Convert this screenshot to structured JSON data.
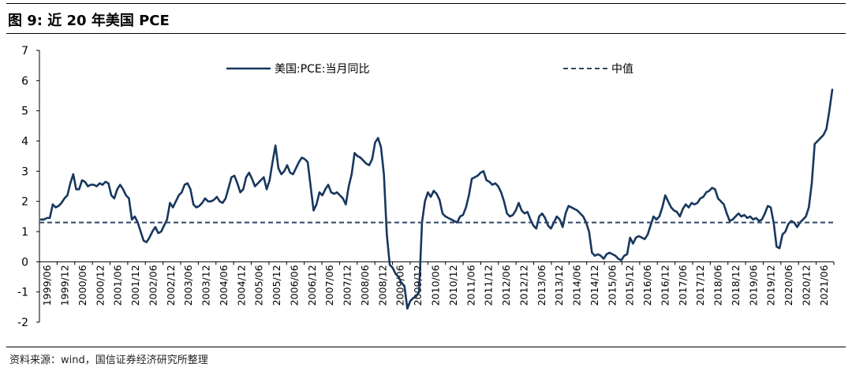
{
  "figure": {
    "title": "图 9:  近 20 年美国 PCE",
    "source": "资料来源：wind，国信证券经济研究所整理"
  },
  "chart_data": {
    "type": "line",
    "ylim": [
      -2,
      7
    ],
    "yticks": [
      -2,
      -1,
      0,
      1,
      2,
      3,
      4,
      5,
      6,
      7
    ],
    "x_tick_labels": [
      "1999/06",
      "1999/12",
      "2000/06",
      "2000/12",
      "2001/06",
      "2001/12",
      "2002/06",
      "2002/12",
      "2003/06",
      "2003/12",
      "2004/06",
      "2004/12",
      "2005/06",
      "2005/12",
      "2006/06",
      "2006/12",
      "2007/06",
      "2007/12",
      "2008/06",
      "2008/12",
      "2009/06",
      "2009/12",
      "2010/06",
      "2010/12",
      "2011/06",
      "2011/12",
      "2012/06",
      "2012/12",
      "2013/06",
      "2013/12",
      "2014/06",
      "2014/12",
      "2015/06",
      "2015/12",
      "2016/06",
      "2016/12",
      "2017/06",
      "2017/12",
      "2018/06",
      "2018/12",
      "2019/06",
      "2019/12",
      "2020/06",
      "2020/12",
      "2021/06"
    ],
    "legend_position": "top",
    "grid": false,
    "series": [
      {
        "name": "美国:PCE:当月同比",
        "style": "solid",
        "color": "#17375e",
        "x_start": "1999/01",
        "frequency": "monthly",
        "values": [
          1.4,
          1.4,
          1.45,
          1.45,
          1.9,
          1.8,
          1.85,
          1.95,
          2.1,
          2.2,
          2.6,
          2.9,
          2.4,
          2.4,
          2.7,
          2.65,
          2.5,
          2.55,
          2.55,
          2.5,
          2.6,
          2.55,
          2.65,
          2.6,
          2.2,
          2.1,
          2.4,
          2.55,
          2.4,
          2.2,
          2.1,
          1.4,
          1.5,
          1.3,
          1.0,
          0.7,
          0.65,
          0.8,
          1.0,
          1.15,
          0.95,
          1.0,
          1.2,
          1.4,
          1.95,
          1.8,
          2.0,
          2.2,
          2.3,
          2.55,
          2.6,
          2.4,
          1.9,
          1.8,
          1.85,
          1.95,
          2.1,
          2.0,
          2.0,
          2.05,
          2.15,
          2.0,
          1.95,
          2.1,
          2.45,
          2.8,
          2.85,
          2.6,
          2.3,
          2.4,
          2.8,
          2.95,
          2.75,
          2.5,
          2.6,
          2.7,
          2.8,
          2.4,
          2.7,
          3.3,
          3.85,
          3.1,
          2.9,
          3.0,
          3.2,
          2.95,
          2.9,
          3.1,
          3.3,
          3.45,
          3.4,
          3.3,
          2.5,
          1.7,
          1.9,
          2.3,
          2.2,
          2.4,
          2.55,
          2.3,
          2.25,
          2.3,
          2.2,
          2.1,
          1.9,
          2.5,
          2.9,
          3.6,
          3.5,
          3.45,
          3.35,
          3.25,
          3.2,
          3.4,
          3.95,
          4.1,
          3.8,
          2.9,
          0.9,
          -0.1,
          -0.2,
          -0.4,
          -0.5,
          -0.7,
          -0.8,
          -1.55,
          -1.3,
          -1.2,
          -1.15,
          -1.0,
          1.3,
          2.0,
          2.3,
          2.15,
          2.35,
          2.25,
          2.05,
          1.6,
          1.5,
          1.45,
          1.4,
          1.35,
          1.3,
          1.5,
          1.55,
          1.8,
          2.2,
          2.75,
          2.8,
          2.85,
          2.95,
          3.0,
          2.7,
          2.65,
          2.55,
          2.6,
          2.5,
          2.3,
          2.0,
          1.6,
          1.5,
          1.55,
          1.7,
          1.95,
          1.7,
          1.6,
          1.65,
          1.4,
          1.2,
          1.1,
          1.5,
          1.6,
          1.45,
          1.2,
          1.1,
          1.3,
          1.5,
          1.4,
          1.15,
          1.6,
          1.85,
          1.8,
          1.75,
          1.7,
          1.6,
          1.5,
          1.3,
          1.0,
          0.3,
          0.2,
          0.25,
          0.2,
          0.1,
          0.25,
          0.3,
          0.25,
          0.2,
          0.1,
          0.05,
          0.2,
          0.25,
          0.8,
          0.6,
          0.8,
          0.85,
          0.8,
          0.75,
          0.9,
          1.2,
          1.5,
          1.4,
          1.5,
          1.8,
          2.2,
          2.0,
          1.8,
          1.7,
          1.65,
          1.5,
          1.75,
          1.9,
          1.8,
          1.95,
          1.9,
          1.95,
          2.1,
          2.15,
          2.3,
          2.35,
          2.45,
          2.4,
          2.1,
          2.0,
          1.9,
          1.6,
          1.35,
          1.4,
          1.5,
          1.6,
          1.5,
          1.55,
          1.45,
          1.5,
          1.4,
          1.45,
          1.35,
          1.4,
          1.6,
          1.85,
          1.8,
          1.3,
          0.5,
          0.45,
          0.9,
          1.0,
          1.25,
          1.35,
          1.3,
          1.15,
          1.3,
          1.4,
          1.5,
          1.8,
          2.6,
          3.9,
          4.0,
          4.1,
          4.2,
          4.4,
          5.0,
          5.7
        ]
      },
      {
        "name": "中值",
        "style": "dashed",
        "color": "#2e4566",
        "constant": 1.3
      }
    ]
  }
}
